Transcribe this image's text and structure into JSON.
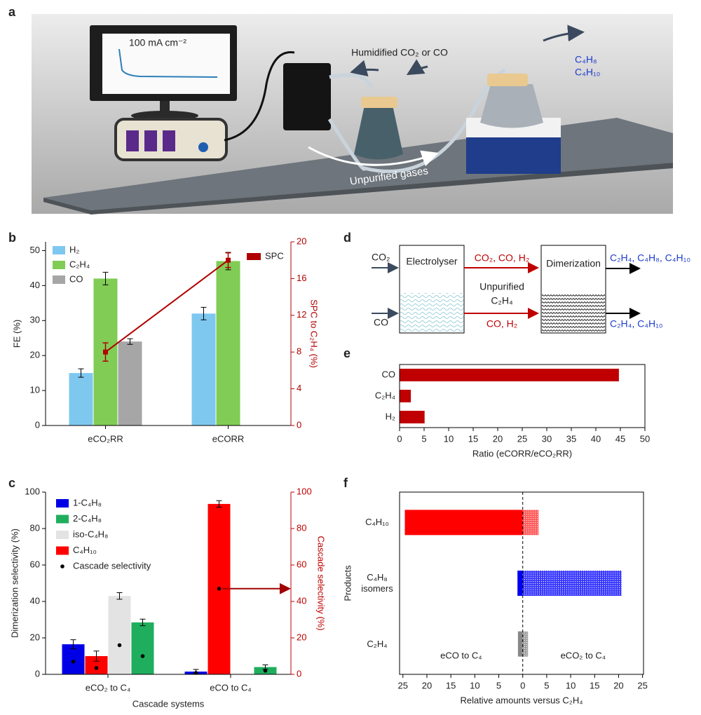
{
  "illustration": {
    "label": "a",
    "current_density": "100 mA cm⁻²",
    "gas_input": "Humidified CO₂ or CO",
    "products": [
      "C₄H₈",
      "C₄H₁₀"
    ],
    "gas_transfer": "Unpurified gases"
  },
  "diagram": {
    "label": "d",
    "inputs": [
      "CO₂",
      "CO"
    ],
    "electrolyser": "Electrolyser",
    "outputs_top": "CO₂, CO, H₂",
    "intermediate": [
      "Unpurified",
      "C₂H₄"
    ],
    "outputs_bottom": "CO, H₂",
    "dimerization": "Dimerization",
    "products_top": "C₂H₄, C₄H₈, C₄H₁₀",
    "products_bottom": "C₂H₄, C₄H₁₀"
  },
  "chart_data": [
    {
      "label": "b",
      "type": "bar",
      "categories": [
        "eCO₂RR",
        "eCORR"
      ],
      "ylabel": "FE (%)",
      "y2label": "SPC to C₂H₄ (%)",
      "ylim": [
        0,
        52.5
      ],
      "yticks": [
        0,
        10,
        20,
        30,
        40,
        50
      ],
      "y2lim": [
        0,
        20
      ],
      "y2ticks": [
        0,
        4,
        8,
        12,
        16,
        20
      ],
      "y2color": "#b00000",
      "series": [
        {
          "name": "H₂",
          "color": "#7ec8f0",
          "values": [
            15,
            32
          ],
          "errors": [
            1.2,
            1.8
          ]
        },
        {
          "name": "C₂H₄",
          "color": "#80cc55",
          "values": [
            42,
            47
          ],
          "errors": [
            1.8,
            2.5
          ]
        },
        {
          "name": "CO",
          "color": "#a6a6a6",
          "values": [
            24,
            null
          ],
          "errors": [
            0.8,
            null
          ]
        },
        {
          "name": "SPC",
          "type": "line",
          "axis": "y2",
          "color": "#b00000",
          "values": [
            8,
            18
          ],
          "errors": [
            1,
            0.8
          ]
        }
      ]
    },
    {
      "label": "c",
      "type": "bar",
      "categories": [
        "eCO₂ to C₄",
        "eCO to C₄"
      ],
      "xlabel": "Cascade systems",
      "ylabel": "Dimerization selectivity (%)",
      "y2label": "Cascade selectivity (%)",
      "ylim": [
        0,
        100
      ],
      "yticks": [
        0,
        20,
        40,
        60,
        80,
        100
      ],
      "y2lim": [
        0,
        100
      ],
      "y2ticks": [
        0,
        20,
        40,
        60,
        80,
        100
      ],
      "y2color": "#c00000",
      "cascade_name": "Cascade selectivity",
      "cascade_color": "#000000",
      "series": [
        {
          "name": "1-C₄H₈",
          "color": "#0000e6",
          "values": [
            16.5,
            1.5
          ],
          "errors": [
            2.5,
            1.2
          ],
          "cascade": [
            7,
            0.8
          ]
        },
        {
          "name": "2-C₄H₈",
          "color": "#1fae5e",
          "values": [
            28.5,
            4
          ],
          "errors": [
            1.8,
            1.2
          ],
          "cascade": [
            10,
            2
          ]
        },
        {
          "name": "iso-C₄H₈",
          "color": "#e3e3e3",
          "values": [
            43,
            null
          ],
          "errors": [
            1.8,
            null
          ],
          "cascade": [
            16,
            null
          ]
        },
        {
          "name": "C₄H₁₀",
          "color": "#ff0000",
          "values": [
            10,
            93.5
          ],
          "errors": [
            2.8,
            1.8
          ],
          "cascade": [
            3.5,
            47
          ]
        }
      ]
    },
    {
      "label": "e",
      "type": "hbar",
      "categories": [
        "CO",
        "C₂H₄",
        "H₂"
      ],
      "values": [
        44.7,
        2.3,
        5.1
      ],
      "color": "#c00000",
      "xlim": [
        0,
        50
      ],
      "xticks": [
        0,
        5,
        10,
        15,
        20,
        25,
        30,
        35,
        40,
        45,
        50
      ],
      "xlabel": "Ratio (eCORR/eCO₂RR)"
    },
    {
      "label": "f",
      "type": "diverging",
      "categories": [
        "C₄H₁₀",
        "C₄H₈ isomers",
        "C₂H₄"
      ],
      "ylabel": "Products",
      "xlabel": "Relative amounts versus C₂H₄",
      "xlim": [
        -25.7,
        25.2
      ],
      "zero_line": true,
      "xticks": [
        {
          "value": -25,
          "label": "25"
        },
        {
          "value": -20,
          "label": "20"
        },
        {
          "value": -15,
          "label": "15"
        },
        {
          "value": -10,
          "label": "10"
        },
        {
          "value": -5,
          "label": "5"
        },
        0,
        5,
        10,
        15,
        20,
        25
      ],
      "series": [
        {
          "name": "eCO to C₄",
          "colors": [
            "#ff0000",
            "#0000ee",
            "#888888"
          ],
          "values": [
            -24.6,
            -1.1,
            -1
          ]
        },
        {
          "name": "eCO₂ to C₄",
          "colors": [
            "#ff5a5a",
            "#3a3aff",
            "#a0a0a0"
          ],
          "hatch": true,
          "values": [
            3.3,
            20.6,
            1.1
          ]
        }
      ]
    }
  ]
}
